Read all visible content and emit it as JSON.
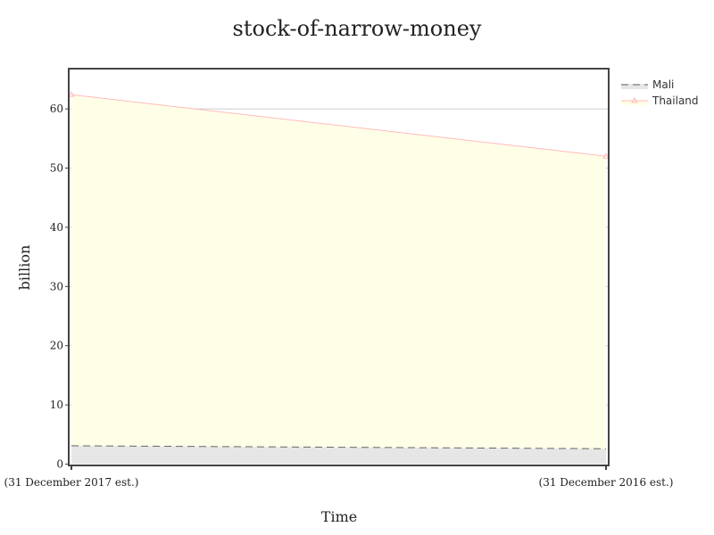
{
  "chart_data": {
    "type": "area",
    "title": "stock-of-narrow-money",
    "xlabel": "Time",
    "ylabel": "billion",
    "categories": [
      "(31 December 2017 est.)",
      "(31 December 2016 est.)"
    ],
    "ylim": [
      0,
      66
    ],
    "yticks": [
      0,
      10,
      20,
      30,
      40,
      50,
      60
    ],
    "grid": true,
    "legend_position": "top-right",
    "series": [
      {
        "name": "Mali",
        "values": [
          3.1,
          2.6
        ],
        "color": "#666666",
        "fill": "#e6e6e6",
        "line_style": "dashed",
        "marker": "none"
      },
      {
        "name": "Thailand",
        "values": [
          62.4,
          52.0
        ],
        "color": "#ffbbbb",
        "fill": "#ffffe8",
        "line_style": "solid",
        "marker": "triangle"
      }
    ]
  }
}
